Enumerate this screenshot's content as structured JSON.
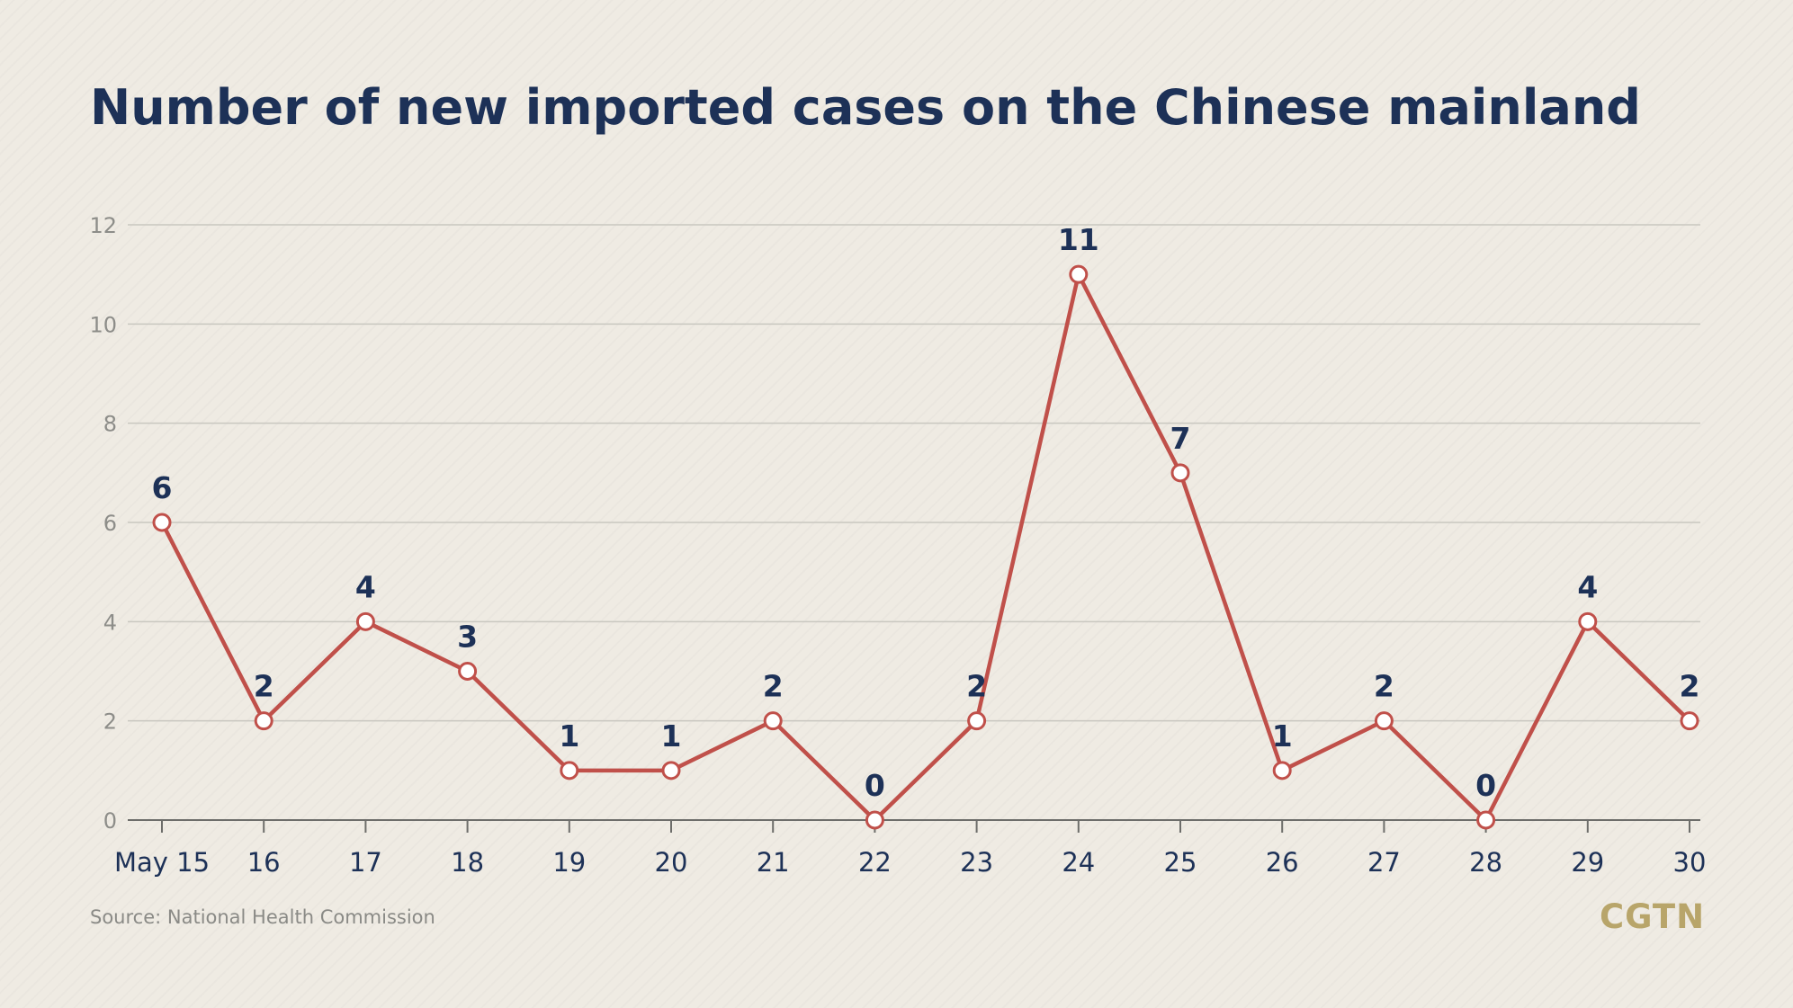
{
  "title": "Number of new imported cases on the Chinese mainland",
  "source": "Source: National Health Commission",
  "logo": "CGTN",
  "colors": {
    "background": "#efebe3",
    "title": "#1d3157",
    "line": "#c0504a",
    "grid": "#c9c7c0",
    "axis": "#6d6d6a",
    "logo": "#b8a56a"
  },
  "chart_data": {
    "type": "line",
    "title": "Number of new imported cases on the Chinese mainland",
    "xlabel": "",
    "ylabel": "",
    "categories": [
      "May 15",
      "16",
      "17",
      "18",
      "19",
      "20",
      "21",
      "22",
      "23",
      "24",
      "25",
      "26",
      "27",
      "28",
      "29",
      "30"
    ],
    "series": [
      {
        "values": [
          6,
          2,
          4,
          3,
          1,
          1,
          2,
          0,
          2,
          11,
          7,
          1,
          2,
          0,
          4,
          2
        ]
      }
    ],
    "ylim": [
      0,
      12
    ],
    "yticks": [
      0,
      2,
      4,
      6,
      8,
      10,
      12
    ],
    "grid": true,
    "data_labels": true,
    "legend": "none"
  }
}
